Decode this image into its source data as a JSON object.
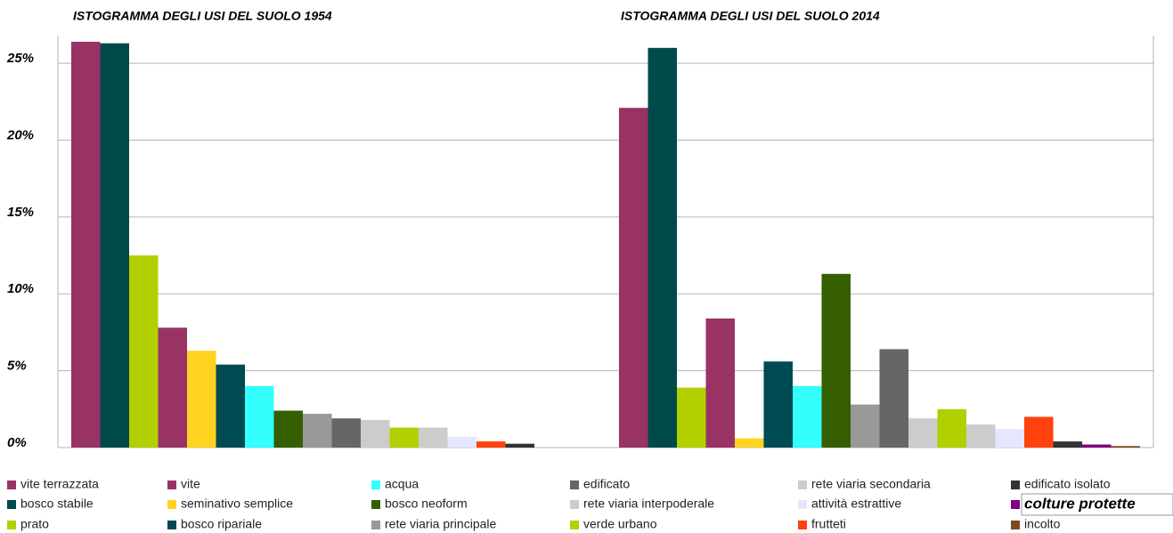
{
  "chart_data": {
    "type": "bar",
    "categories": [
      "ISTOGRAMMA DEGLI USI DEL SUOLO 1954",
      "ISTOGRAMMA DEGLI USI DEL SUOLO 2014"
    ],
    "series": [
      {
        "name": "vite terrazzata",
        "color": "#993366",
        "values": [
          26.4,
          22.1
        ]
      },
      {
        "name": "bosco stabile",
        "color": "#004a4a",
        "values": [
          26.3,
          26.0
        ]
      },
      {
        "name": "prato",
        "color": "#b2d000",
        "values": [
          12.5,
          3.9
        ]
      },
      {
        "name": "vite",
        "color": "#993366",
        "values": [
          7.8,
          8.4
        ]
      },
      {
        "name": "seminativo semplice",
        "color": "#ffd320",
        "values": [
          6.3,
          0.6
        ]
      },
      {
        "name": "bosco ripariale",
        "color": "#004a52",
        "values": [
          5.4,
          5.6
        ]
      },
      {
        "name": "acqua",
        "color": "#33ffff",
        "values": [
          4.0,
          4.0
        ]
      },
      {
        "name": "bosco neoform",
        "color": "#355e00",
        "values": [
          2.4,
          11.3
        ]
      },
      {
        "name": "rete viaria principale",
        "color": "#999999",
        "values": [
          2.2,
          2.8
        ]
      },
      {
        "name": "edificato",
        "color": "#666666",
        "values": [
          1.9,
          6.4
        ]
      },
      {
        "name": "rete viaria interpoderale",
        "color": "#cccccc",
        "values": [
          1.8,
          1.9
        ]
      },
      {
        "name": "verde urbano",
        "color": "#b2d000",
        "values": [
          1.3,
          2.5
        ]
      },
      {
        "name": "rete viaria secondaria",
        "color": "#cccccc",
        "values": [
          1.3,
          1.5
        ]
      },
      {
        "name": "attività estrattive",
        "color": "#e6e6ff",
        "values": [
          0.7,
          1.2
        ]
      },
      {
        "name": "frutteti",
        "color": "#ff420e",
        "values": [
          0.4,
          2.0
        ]
      },
      {
        "name": "edificato isolato",
        "color": "#333333",
        "values": [
          0.25,
          0.4
        ]
      },
      {
        "name": "colture protette",
        "color": "#7e0080",
        "values": [
          0,
          0.2
        ]
      },
      {
        "name": "incolto",
        "color": "#7e4a1e",
        "values": [
          0,
          0.1
        ]
      }
    ],
    "ylim": [
      0,
      26.8
    ],
    "yticks": [
      {
        "value": 0,
        "label": "0%"
      },
      {
        "value": 5,
        "label": "5%"
      },
      {
        "value": 10,
        "label": "10%"
      },
      {
        "value": 15,
        "label": "15%"
      },
      {
        "value": 20,
        "label": "20%"
      },
      {
        "value": 25,
        "label": "25%"
      }
    ],
    "grid": true
  }
}
